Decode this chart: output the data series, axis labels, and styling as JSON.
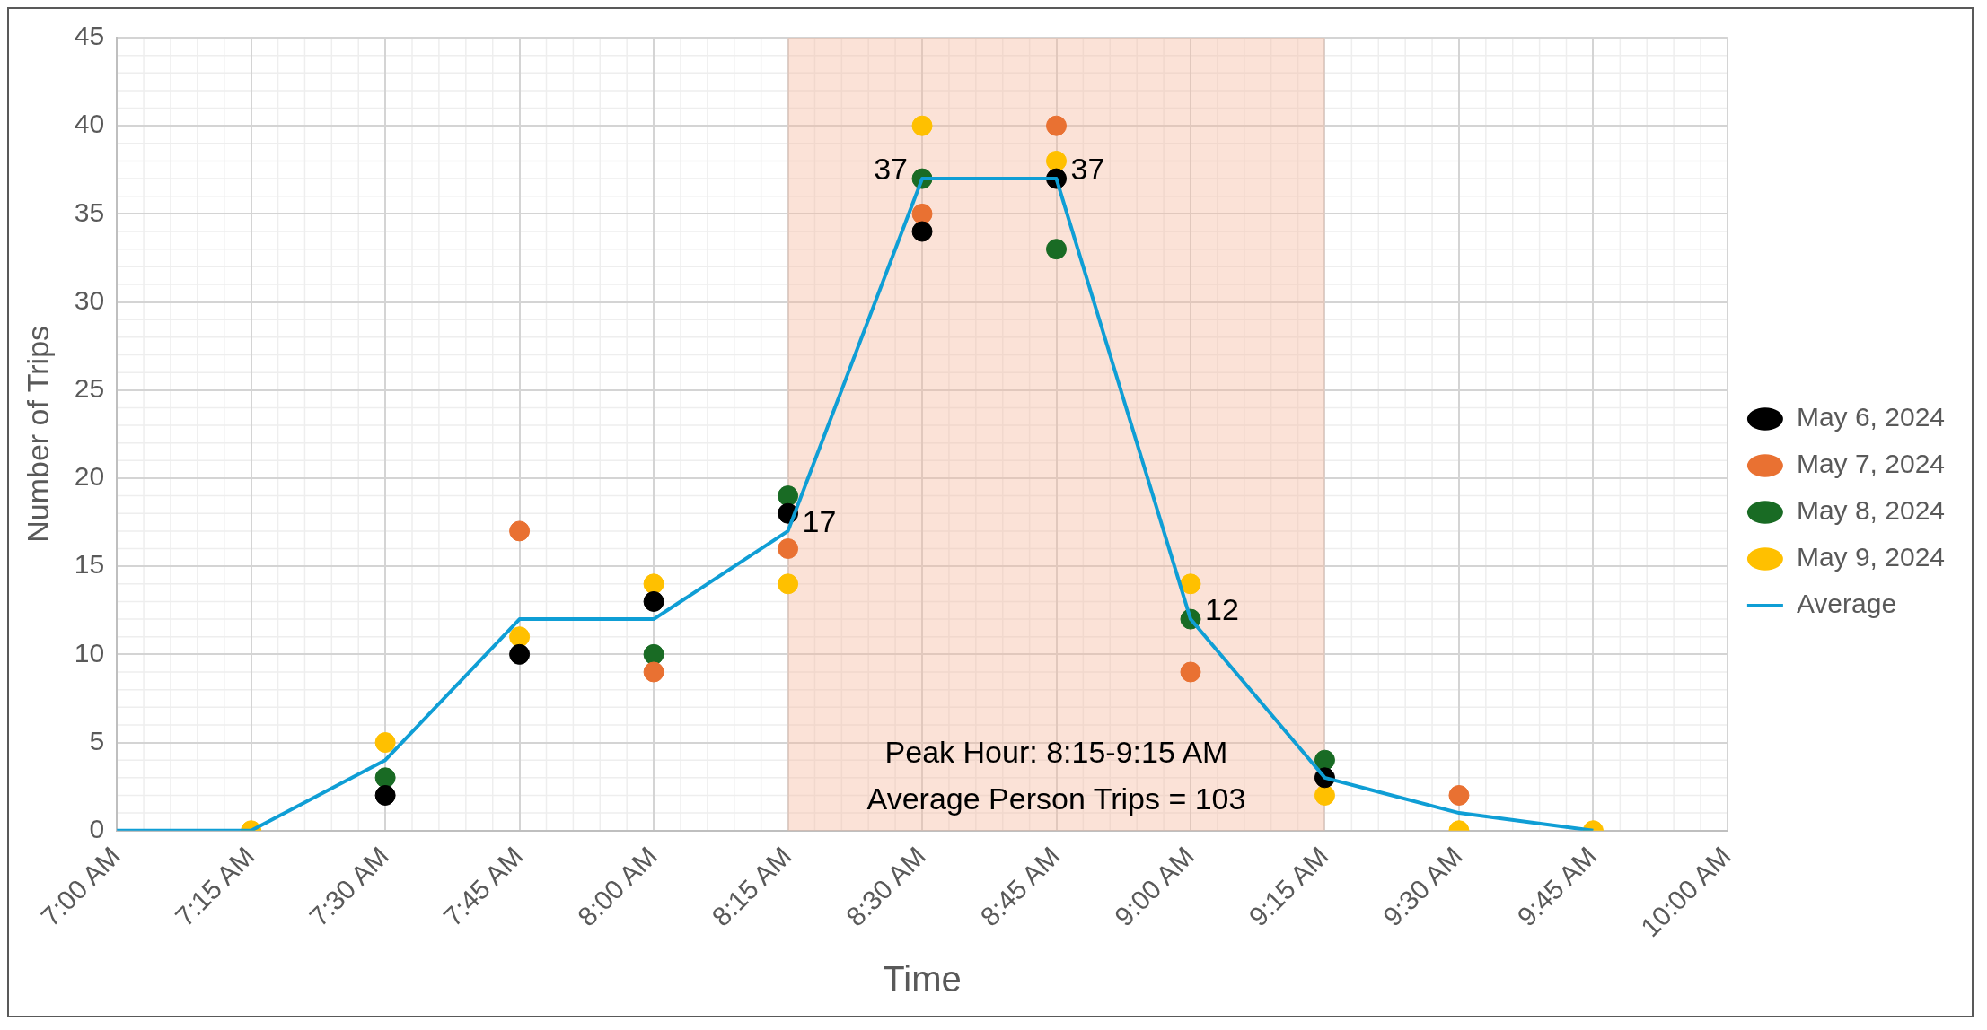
{
  "chart_data": {
    "type": "scatter",
    "xlabel": "Time",
    "ylabel": "Number of Trips",
    "categories": [
      "7:00 AM",
      "7:15 AM",
      "7:30 AM",
      "7:45 AM",
      "8:00 AM",
      "8:15 AM",
      "8:30 AM",
      "8:45 AM",
      "9:00 AM",
      "9:15 AM",
      "9:30 AM",
      "9:45 AM",
      "10:00 AM"
    ],
    "series": [
      {
        "name": "May 6, 2024",
        "color": "#000000",
        "values": [
          null,
          null,
          2,
          10,
          13,
          18,
          34,
          37,
          null,
          3,
          null,
          null,
          null
        ]
      },
      {
        "name": "May 7, 2024",
        "color": "#e97132",
        "values": [
          null,
          null,
          null,
          17,
          9,
          16,
          35,
          40,
          9,
          null,
          2,
          null,
          null
        ]
      },
      {
        "name": "May 8, 2024",
        "color": "#196b24",
        "values": [
          null,
          null,
          3,
          null,
          10,
          19,
          37,
          33,
          12,
          4,
          null,
          null,
          null
        ]
      },
      {
        "name": "May 9, 2024",
        "color": "#ffc000",
        "values": [
          null,
          0,
          5,
          11,
          14,
          14,
          40,
          38,
          14,
          2,
          0,
          0,
          null
        ]
      },
      {
        "name": "Average",
        "type": "line",
        "marker": "none",
        "color": "#0f9ed5",
        "values": [
          0,
          0,
          4,
          12,
          12,
          17,
          37,
          37,
          12,
          3,
          1,
          0,
          null
        ],
        "value_labels": [
          null,
          null,
          null,
          null,
          null,
          "17",
          "37",
          "37",
          "12",
          null,
          null,
          null,
          null
        ]
      }
    ],
    "ylim": [
      0,
      45
    ],
    "yticks": [
      0,
      5,
      10,
      15,
      20,
      25,
      30,
      35,
      40,
      45
    ],
    "bands": [
      {
        "axis": "x",
        "from": "8:15 AM",
        "to": "9:15 AM",
        "color": "#f4b69a"
      }
    ],
    "annotations": [
      "Peak Hour: 8:15-9:15 AM",
      "Average Person Trips = 103"
    ],
    "grid": true,
    "legend": "right",
    "marker": "circle"
  }
}
